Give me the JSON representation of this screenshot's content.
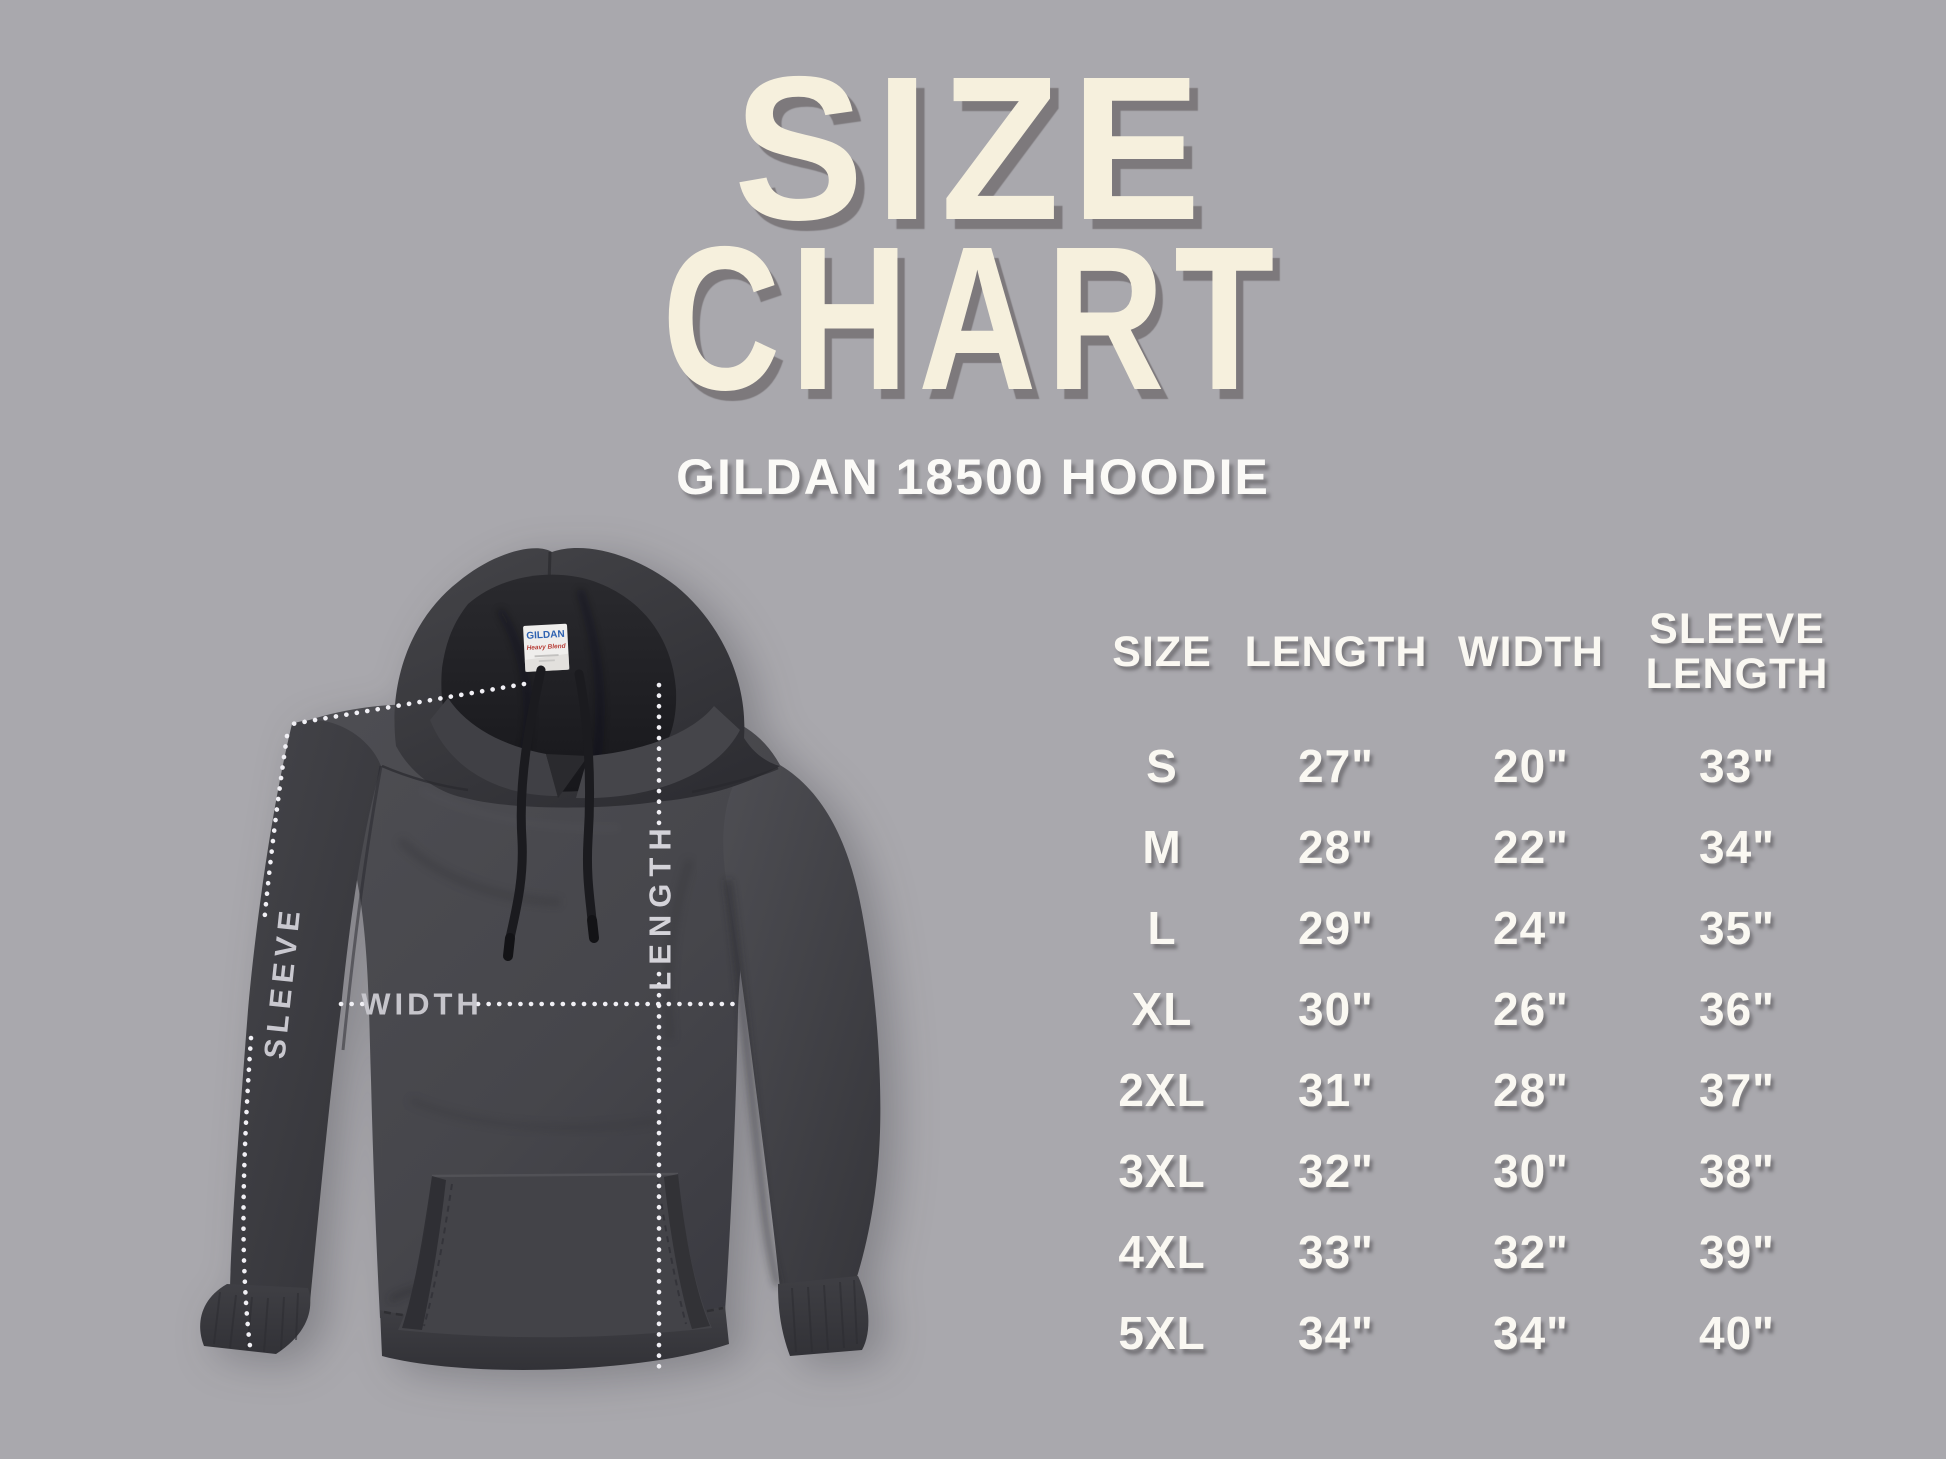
{
  "page": {
    "background_color": "#a9a8ad",
    "title_color": "#f6f0dd",
    "title_shadow_color": "#7c787c",
    "text_color": "#faf8f2",
    "hoodie_color": "#414146",
    "measure_line_color": "#f1f0f5",
    "measure_text_color": "#cbcad1"
  },
  "header": {
    "title_line1": "SIZE",
    "title_line2": "CHART",
    "subtitle": "GILDAN 18500 HOODIE"
  },
  "diagram": {
    "labels": {
      "sleeve": "SLEEVE",
      "length": "LENGTH",
      "width": "WIDTH"
    },
    "neck_tag": {
      "brand": "GILDAN",
      "line2": "Heavy Blend",
      "brand_color": "#2e62b1",
      "line2_color": "#b8403a"
    }
  },
  "size_table": {
    "columns": [
      "SIZE",
      "LENGTH",
      "WIDTH",
      "SLEEVE LENGTH"
    ],
    "rows": [
      {
        "size": "S",
        "length": "27\"",
        "width": "20\"",
        "sleeve_length": "33\""
      },
      {
        "size": "M",
        "length": "28\"",
        "width": "22\"",
        "sleeve_length": "34\""
      },
      {
        "size": "L",
        "length": "29\"",
        "width": "24\"",
        "sleeve_length": "35\""
      },
      {
        "size": "XL",
        "length": "30\"",
        "width": "26\"",
        "sleeve_length": "36\""
      },
      {
        "size": "2XL",
        "length": "31\"",
        "width": "28\"",
        "sleeve_length": "37\""
      },
      {
        "size": "3XL",
        "length": "32\"",
        "width": "30\"",
        "sleeve_length": "38\""
      },
      {
        "size": "4XL",
        "length": "33\"",
        "width": "32\"",
        "sleeve_length": "39\""
      },
      {
        "size": "5XL",
        "length": "34\"",
        "width": "34\"",
        "sleeve_length": "40\""
      }
    ]
  },
  "chart_data": {
    "type": "table",
    "title": "SIZE CHART",
    "subtitle": "GILDAN 18500 HOODIE",
    "columns": [
      "SIZE",
      "LENGTH",
      "WIDTH",
      "SLEEVE LENGTH"
    ],
    "rows": [
      [
        "S",
        "27\"",
        "20\"",
        "33\""
      ],
      [
        "M",
        "28\"",
        "22\"",
        "34\""
      ],
      [
        "L",
        "29\"",
        "24\"",
        "35\""
      ],
      [
        "XL",
        "30\"",
        "26\"",
        "36\""
      ],
      [
        "2XL",
        "31\"",
        "28\"",
        "37\""
      ],
      [
        "3XL",
        "32\"",
        "30\"",
        "38\""
      ],
      [
        "4XL",
        "33\"",
        "32\"",
        "39\""
      ],
      [
        "5XL",
        "34\"",
        "34\"",
        "40\""
      ]
    ],
    "units": "inches",
    "measurements_diagrammed": [
      "SLEEVE",
      "LENGTH",
      "WIDTH"
    ]
  }
}
